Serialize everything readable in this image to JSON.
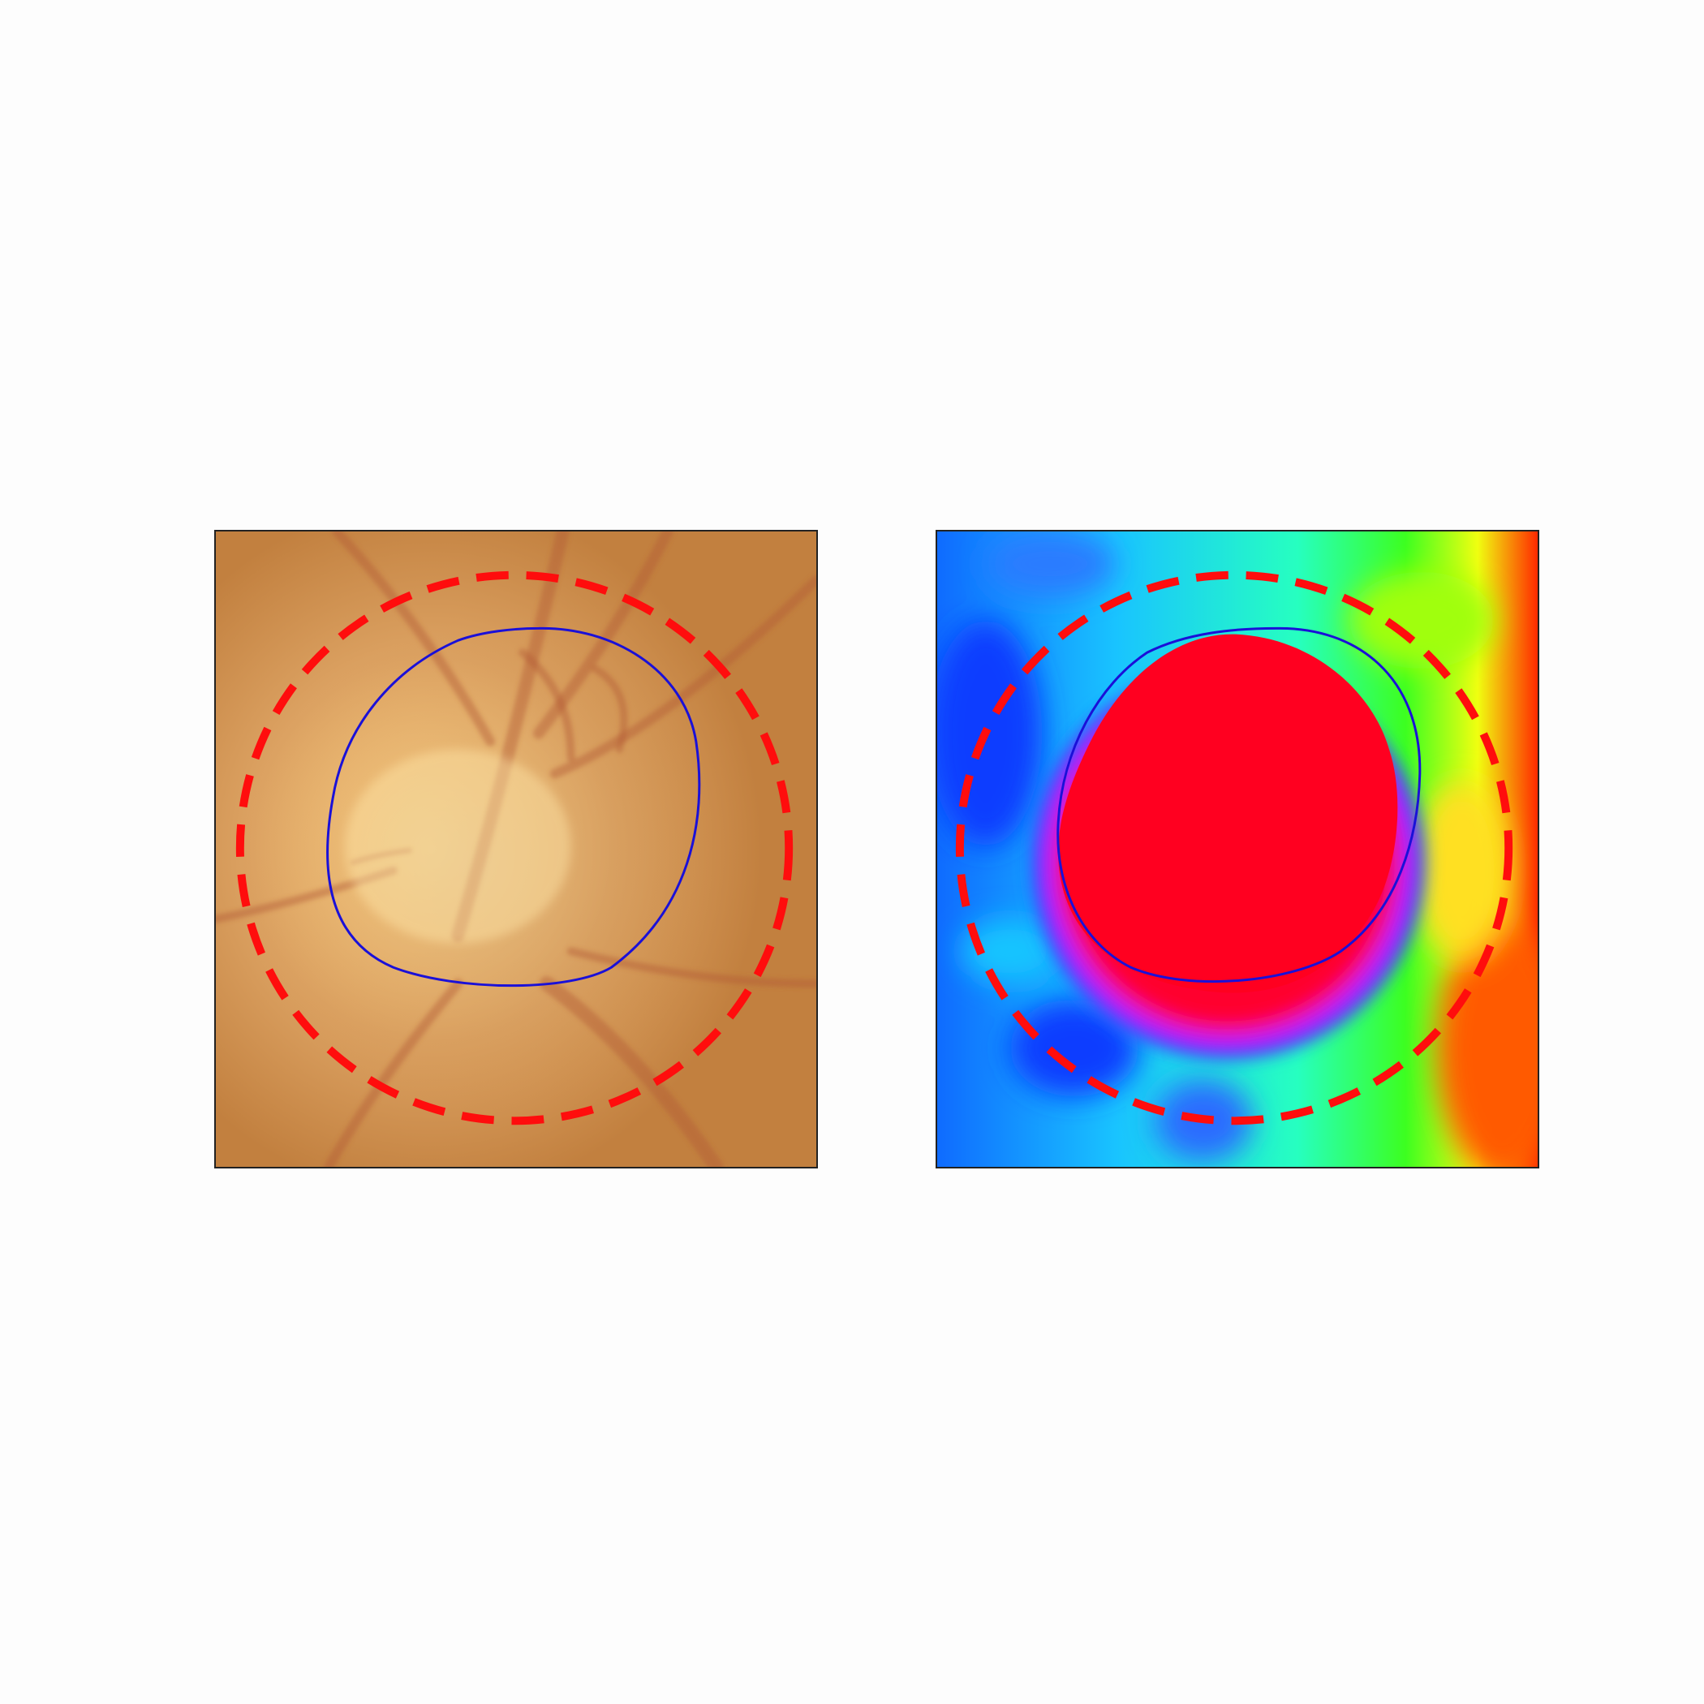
{
  "figure": {
    "panels": [
      {
        "id": "fundus-photo",
        "kind": "retinal fundus image of optic disc",
        "palette": {
          "background": "#c98a45",
          "disc_center": "#ffe09a",
          "vessels": "#b0502c"
        }
      },
      {
        "id": "heatmap",
        "kind": "false-color intensity map",
        "palette": {
          "center": "#ff0020",
          "ring": "#d020ff",
          "low": "#0a3cff",
          "mid": "#19c4ff",
          "high_mid": "#30ff20",
          "high": "#ff2a00"
        }
      }
    ],
    "overlays": {
      "outer_boundary": {
        "style": "dashed",
        "color": "#ff0d0d"
      },
      "inner_boundary": {
        "style": "solid",
        "color": "#1a10d8"
      }
    }
  }
}
